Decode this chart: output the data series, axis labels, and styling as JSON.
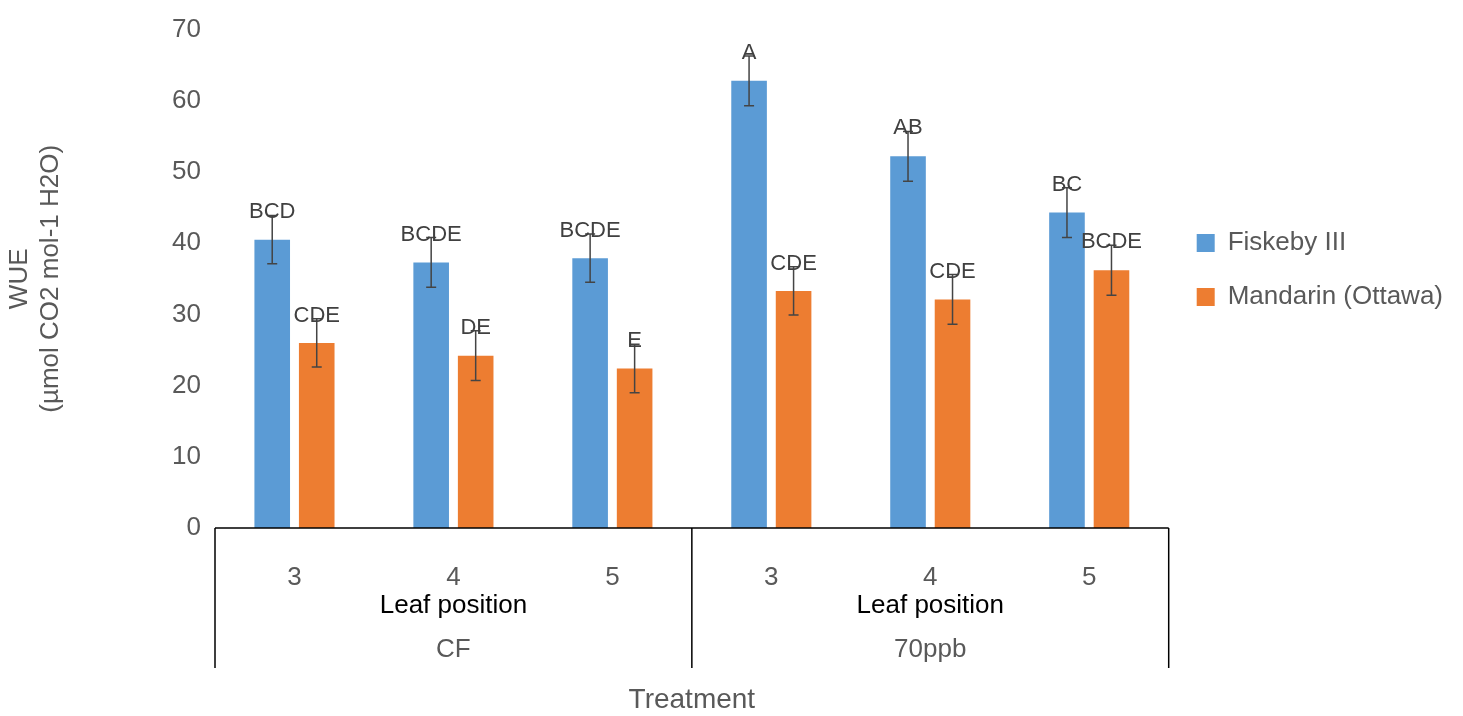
{
  "chart_data": {
    "type": "bar",
    "ylabel": "WUE\n(µmol CO2 mol-1 H2O)",
    "xlabel": "Treatment",
    "categories": [
      "3",
      "4",
      "5",
      "3",
      "4",
      "5"
    ],
    "series": [
      {
        "name": "Fiskeby III",
        "color": "#5b9bd5",
        "values": [
          40.5,
          37.3,
          37.9,
          62.8,
          52.2,
          44.3
        ],
        "errors": [
          3.4,
          3.5,
          3.4,
          3.5,
          3.5,
          3.5
        ],
        "value_labels": [
          "BCD",
          "BCDE",
          "BCDE",
          "A",
          "AB",
          "BC"
        ]
      },
      {
        "name": "Mandarin (Ottawa)",
        "color": "#ed7d31",
        "values": [
          26.0,
          24.2,
          22.4,
          33.3,
          32.1,
          36.2
        ],
        "errors": [
          3.4,
          3.5,
          3.4,
          3.4,
          3.5,
          3.5
        ],
        "value_labels": [
          "CDE",
          "DE",
          "E",
          "CDE",
          "CDE",
          "BCDE"
        ]
      }
    ],
    "annotations": [
      "Leaf position",
      "Leaf position",
      "CF",
      "70ppb"
    ],
    "ylim": [
      0,
      70
    ],
    "yticks": [
      0,
      10,
      20,
      30,
      40,
      50,
      60,
      70
    ],
    "grid": false,
    "legend": "right"
  }
}
